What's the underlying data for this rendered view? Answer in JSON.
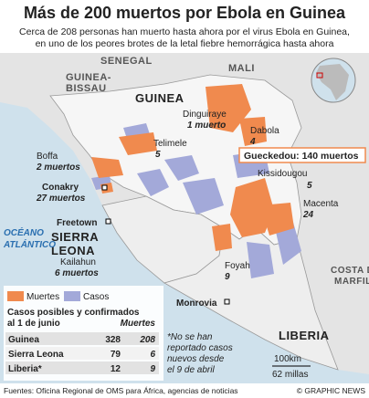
{
  "header": {
    "title": "Más de 200 muertos por Ebola en Guinea",
    "subtitle": [
      "Cerca de 208 personas han muerto hasta ahora por el virus Ebola en Guinea,",
      "en uno de los peores brotes de la letal fiebre hemorrágica hasta ahora"
    ]
  },
  "map": {
    "countries": {
      "senegal": "SENEGAL",
      "mali": "MALI",
      "bissau": [
        "GUINEA-",
        "BISSAU"
      ],
      "guinea": "GUINEA",
      "sierra": [
        "SIERRA",
        "LEONA"
      ],
      "liberia": "LIBERIA",
      "ivory": [
        "COSTA DE",
        "MARFIL"
      ]
    },
    "ocean": [
      "OCÉANO",
      "ATLÁNTICO"
    ],
    "places": [
      {
        "name": "Dinguiraye",
        "deaths": "1 muerto"
      },
      {
        "name": "Dabola",
        "deaths": "4"
      },
      {
        "name": "Telimele",
        "deaths": "5"
      },
      {
        "name": "Boffa",
        "deaths": "2 muertos"
      },
      {
        "name": "Conakry",
        "deaths": "27 muertos"
      },
      {
        "name": "Kissidougou",
        "deaths": "5"
      },
      {
        "name": "Macenta",
        "deaths": "24"
      },
      {
        "name": "Kailahun",
        "deaths": "6 muertos"
      },
      {
        "name": "Foyah",
        "deaths": "9"
      }
    ],
    "highlight": "Gueckedou: 140 muertos",
    "cities": [
      "Freetown",
      "Monrovia"
    ]
  },
  "legend": [
    "Muertes",
    "Casos"
  ],
  "table": {
    "title": [
      "Casos posibles y confirmados",
      "al 1 de junio"
    ],
    "header": "Muertes",
    "rows": [
      [
        "Guinea",
        328,
        208
      ],
      [
        "Sierra Leona",
        79,
        6
      ],
      [
        "Liberia*",
        12,
        9
      ]
    ]
  },
  "note": [
    "*No se han",
    "reportado casos",
    "nuevos desde",
    "el 9 de abril"
  ],
  "scale": [
    "100km",
    "62 millas"
  ],
  "footer": {
    "source": "Fuentes: Oficina Regional de OMS para África, agencias de noticias",
    "credit": "© GRAPHIC NEWS"
  }
}
